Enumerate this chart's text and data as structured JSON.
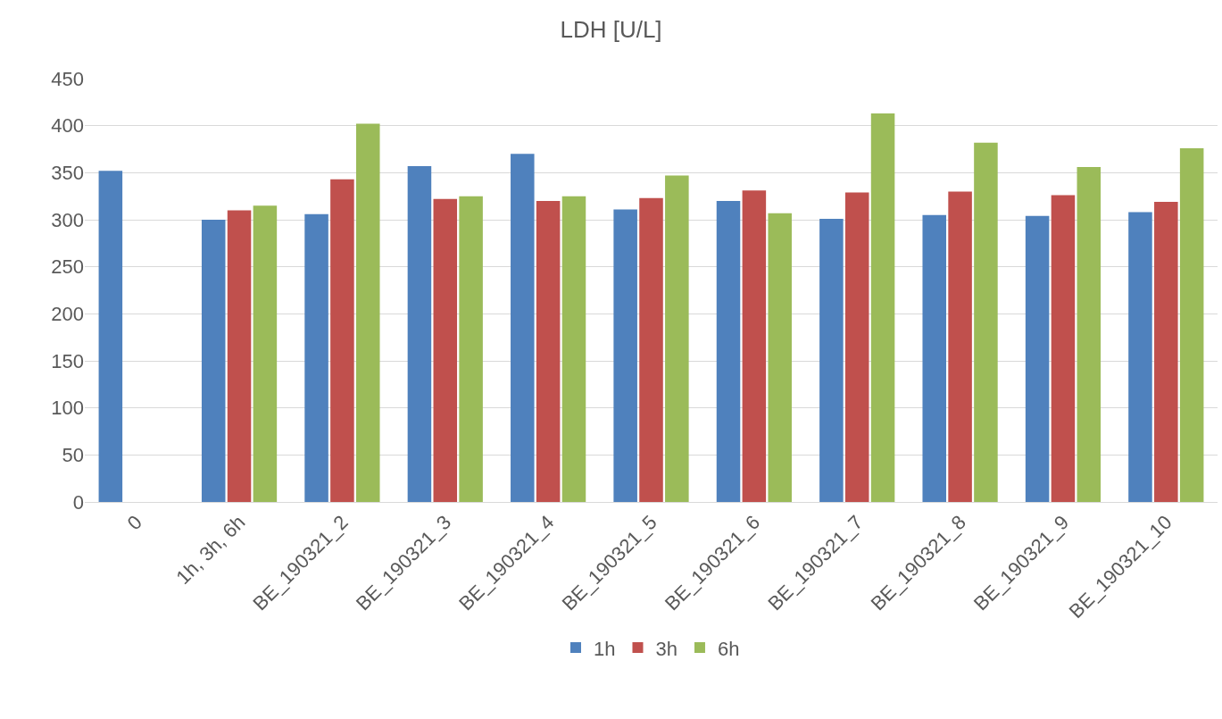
{
  "chart_data": {
    "type": "bar",
    "title": "LDH [U/L]",
    "categories": [
      "0",
      "1h, 3h, 6h",
      "BE_190321_2",
      "BE_190321_3",
      "BE_190321_4",
      "BE_190321_5",
      "BE_190321_6",
      "BE_190321_7",
      "BE_190321_8",
      "BE_190321_9",
      "BE_190321_10"
    ],
    "series": [
      {
        "name": "1h",
        "color": "#4f81bd",
        "values": [
          352,
          300,
          306,
          357,
          370,
          311,
          320,
          301,
          305,
          304,
          308
        ]
      },
      {
        "name": "3h",
        "color": "#c0504d",
        "values": [
          null,
          310,
          343,
          322,
          320,
          323,
          331,
          329,
          330,
          326,
          319
        ]
      },
      {
        "name": "6h",
        "color": "#9bbb59",
        "values": [
          null,
          315,
          402,
          325,
          325,
          347,
          307,
          413,
          382,
          356,
          376
        ]
      }
    ],
    "ylim": [
      0,
      450
    ],
    "yticks": [
      0,
      50,
      100,
      150,
      200,
      250,
      300,
      350,
      400,
      450
    ],
    "grid": "y",
    "legend": "bottom"
  }
}
